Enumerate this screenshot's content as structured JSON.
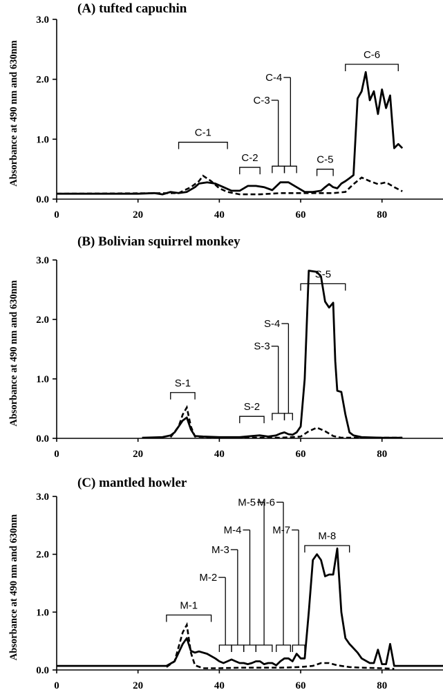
{
  "chart_data": [
    {
      "type": "line",
      "title": "(A) tufted capuchin",
      "ylabel": "Absorbance at 490 nm and 630nm",
      "xlim": [
        0,
        95
      ],
      "ylim": [
        0,
        3
      ],
      "x_ticks": [
        "0",
        "20",
        "40",
        "60",
        "80"
      ],
      "y_ticks": [
        "0.0",
        "1.0",
        "2.0",
        "3.0"
      ],
      "series": [
        {
          "style": "solid",
          "points": [
            [
              0,
              0.09
            ],
            [
              20,
              0.09
            ],
            [
              24,
              0.1
            ],
            [
              26,
              0.08
            ],
            [
              28,
              0.12
            ],
            [
              30,
              0.1
            ],
            [
              32,
              0.12
            ],
            [
              34,
              0.2
            ],
            [
              35,
              0.26
            ],
            [
              37,
              0.28
            ],
            [
              39,
              0.26
            ],
            [
              41,
              0.2
            ],
            [
              43,
              0.14
            ],
            [
              45,
              0.14
            ],
            [
              47,
              0.22
            ],
            [
              49,
              0.22
            ],
            [
              51,
              0.2
            ],
            [
              53,
              0.15
            ],
            [
              55,
              0.28
            ],
            [
              57,
              0.28
            ],
            [
              59,
              0.2
            ],
            [
              61,
              0.12
            ],
            [
              63,
              0.12
            ],
            [
              65,
              0.14
            ],
            [
              66,
              0.2
            ],
            [
              67,
              0.25
            ],
            [
              68,
              0.2
            ],
            [
              69,
              0.18
            ],
            [
              70,
              0.26
            ],
            [
              71,
              0.3
            ],
            [
              72,
              0.35
            ],
            [
              73,
              0.4
            ],
            [
              74,
              1.68
            ],
            [
              75,
              1.8
            ],
            [
              76,
              2.12
            ],
            [
              77,
              1.65
            ],
            [
              78,
              1.8
            ],
            [
              79,
              1.42
            ],
            [
              80,
              1.83
            ],
            [
              81,
              1.52
            ],
            [
              82,
              1.73
            ],
            [
              83,
              0.85
            ],
            [
              84,
              0.92
            ],
            [
              85,
              0.85
            ]
          ]
        },
        {
          "style": "dashed",
          "points": [
            [
              0,
              0.09
            ],
            [
              30,
              0.1
            ],
            [
              33,
              0.2
            ],
            [
              35,
              0.3
            ],
            [
              36,
              0.39
            ],
            [
              38,
              0.3
            ],
            [
              40,
              0.18
            ],
            [
              42,
              0.12
            ],
            [
              45,
              0.08
            ],
            [
              50,
              0.08
            ],
            [
              55,
              0.1
            ],
            [
              60,
              0.1
            ],
            [
              65,
              0.1
            ],
            [
              68,
              0.1
            ],
            [
              71,
              0.12
            ],
            [
              73,
              0.25
            ],
            [
              75,
              0.36
            ],
            [
              77,
              0.3
            ],
            [
              79,
              0.25
            ],
            [
              81,
              0.28
            ],
            [
              83,
              0.2
            ],
            [
              85,
              0.13
            ]
          ]
        }
      ],
      "annotations": [
        {
          "label": "C-1",
          "from": 30,
          "to": 42,
          "level": 0.95
        },
        {
          "label": "C-2",
          "from": 45,
          "to": 50,
          "level": 0.53
        },
        {
          "label": "C-3",
          "from": 53,
          "to": 56,
          "level": 0.55,
          "leader_to": 1.65
        },
        {
          "label": "C-4",
          "from": 56,
          "to": 59,
          "level": 0.55,
          "leader_to": 2.03
        },
        {
          "label": "C-5",
          "from": 64,
          "to": 68,
          "level": 0.5
        },
        {
          "label": "C-6",
          "from": 71,
          "to": 84,
          "level": 2.25
        }
      ]
    },
    {
      "type": "line",
      "title": "(B) Bolivian squirrel monkey",
      "ylabel": "Absorbance at 490 nm and 630nm",
      "xlim": [
        0,
        95
      ],
      "ylim": [
        0,
        3
      ],
      "x_ticks": [
        "0",
        "20",
        "40",
        "60",
        "80"
      ],
      "y_ticks": [
        "0.0",
        "1.0",
        "2.0",
        "3.0"
      ],
      "series": [
        {
          "style": "solid",
          "points": [
            [
              21,
              0.01
            ],
            [
              26,
              0.02
            ],
            [
              28,
              0.05
            ],
            [
              29,
              0.1
            ],
            [
              30,
              0.2
            ],
            [
              31,
              0.3
            ],
            [
              32,
              0.35
            ],
            [
              33,
              0.15
            ],
            [
              34,
              0.04
            ],
            [
              36,
              0.03
            ],
            [
              40,
              0.02
            ],
            [
              45,
              0.02
            ],
            [
              48,
              0.04
            ],
            [
              50,
              0.05
            ],
            [
              52,
              0.03
            ],
            [
              54,
              0.05
            ],
            [
              55,
              0.08
            ],
            [
              56,
              0.1
            ],
            [
              57,
              0.07
            ],
            [
              58,
              0.06
            ],
            [
              59,
              0.1
            ],
            [
              60,
              0.2
            ],
            [
              61,
              1.0
            ],
            [
              62,
              2.82
            ],
            [
              64,
              2.8
            ],
            [
              65,
              2.72
            ],
            [
              66,
              2.3
            ],
            [
              67,
              2.2
            ],
            [
              68,
              2.28
            ],
            [
              68.5,
              1.3
            ],
            [
              69,
              0.8
            ],
            [
              70,
              0.78
            ],
            [
              71,
              0.4
            ],
            [
              72,
              0.1
            ],
            [
              73,
              0.05
            ],
            [
              75,
              0.02
            ],
            [
              80,
              0.01
            ],
            [
              85,
              0.01
            ]
          ]
        },
        {
          "style": "dashed",
          "points": [
            [
              28,
              0.02
            ],
            [
              30,
              0.2
            ],
            [
              31,
              0.4
            ],
            [
              32,
              0.52
            ],
            [
              33,
              0.2
            ],
            [
              34,
              0.03
            ],
            [
              40,
              0.01
            ],
            [
              55,
              0.01
            ],
            [
              60,
              0.03
            ],
            [
              62,
              0.12
            ],
            [
              64,
              0.18
            ],
            [
              66,
              0.12
            ],
            [
              68,
              0.04
            ],
            [
              70,
              0.01
            ],
            [
              85,
              0.01
            ]
          ]
        }
      ],
      "annotations": [
        {
          "label": "S-1",
          "from": 28,
          "to": 34,
          "level": 0.77
        },
        {
          "label": "S-2",
          "from": 45,
          "to": 51,
          "level": 0.37
        },
        {
          "label": "S-3",
          "from": 53,
          "to": 56,
          "level": 0.42,
          "leader_to": 1.55
        },
        {
          "label": "S-4",
          "from": 56,
          "to": 58,
          "level": 0.42,
          "leader_to": 1.93
        },
        {
          "label": "S-5",
          "from": 60,
          "to": 71,
          "level": 2.6
        }
      ]
    },
    {
      "type": "line",
      "title": "(C) mantled howler",
      "ylabel": "Absorbance at 490 nm and 630nm",
      "xlim": [
        0,
        95
      ],
      "ylim": [
        0,
        3
      ],
      "x_ticks": [
        "0",
        "20",
        "40",
        "60",
        "80"
      ],
      "y_ticks": [
        "0.0",
        "1.0",
        "2.0",
        "3.0"
      ],
      "series": [
        {
          "style": "solid",
          "points": [
            [
              0,
              0.07
            ],
            [
              27,
              0.07
            ],
            [
              29,
              0.15
            ],
            [
              30,
              0.3
            ],
            [
              31,
              0.45
            ],
            [
              32,
              0.55
            ],
            [
              33,
              0.33
            ],
            [
              34,
              0.3
            ],
            [
              35,
              0.32
            ],
            [
              37,
              0.28
            ],
            [
              39,
              0.2
            ],
            [
              40,
              0.15
            ],
            [
              41,
              0.12
            ],
            [
              42,
              0.15
            ],
            [
              43,
              0.18
            ],
            [
              44,
              0.15
            ],
            [
              45,
              0.12
            ],
            [
              46,
              0.12
            ],
            [
              47,
              0.1
            ],
            [
              48,
              0.12
            ],
            [
              49,
              0.15
            ],
            [
              50,
              0.15
            ],
            [
              51,
              0.1
            ],
            [
              52,
              0.12
            ],
            [
              53,
              0.12
            ],
            [
              54,
              0.08
            ],
            [
              55,
              0.15
            ],
            [
              56,
              0.2
            ],
            [
              57,
              0.2
            ],
            [
              58,
              0.15
            ],
            [
              59,
              0.28
            ],
            [
              60,
              0.2
            ],
            [
              61,
              0.2
            ],
            [
              62,
              1.0
            ],
            [
              63,
              1.9
            ],
            [
              64,
              2.0
            ],
            [
              65,
              1.9
            ],
            [
              66,
              1.62
            ],
            [
              67,
              1.65
            ],
            [
              68,
              1.65
            ],
            [
              69,
              2.1
            ],
            [
              70,
              1.0
            ],
            [
              71,
              0.55
            ],
            [
              72,
              0.45
            ],
            [
              74,
              0.3
            ],
            [
              75,
              0.2
            ],
            [
              77,
              0.12
            ],
            [
              78,
              0.12
            ],
            [
              79,
              0.35
            ],
            [
              80,
              0.1
            ],
            [
              81,
              0.1
            ],
            [
              82,
              0.45
            ],
            [
              83,
              0.07
            ],
            [
              85,
              0.07
            ],
            [
              95,
              0.07
            ]
          ]
        },
        {
          "style": "dashed",
          "points": [
            [
              27,
              0.05
            ],
            [
              29,
              0.15
            ],
            [
              30,
              0.4
            ],
            [
              31,
              0.65
            ],
            [
              32,
              0.78
            ],
            [
              33,
              0.3
            ],
            [
              34,
              0.08
            ],
            [
              36,
              0.03
            ],
            [
              40,
              0.03
            ],
            [
              45,
              0.04
            ],
            [
              50,
              0.04
            ],
            [
              55,
              0.04
            ],
            [
              60,
              0.05
            ],
            [
              63,
              0.07
            ],
            [
              65,
              0.12
            ],
            [
              67,
              0.12
            ],
            [
              69,
              0.08
            ],
            [
              72,
              0.05
            ],
            [
              75,
              0.04
            ],
            [
              80,
              0.03
            ],
            [
              83,
              0.02
            ]
          ]
        }
      ],
      "annotations": [
        {
          "label": "M-1",
          "from": 27,
          "to": 38,
          "level": 0.95
        },
        {
          "label": "M-2",
          "from": 40,
          "to": 43,
          "level": 0.43,
          "leader_to": 1.6
        },
        {
          "label": "M-3",
          "from": 43,
          "to": 46,
          "level": 0.43,
          "leader_to": 2.08
        },
        {
          "label": "M-4",
          "from": 46,
          "to": 49,
          "level": 0.43,
          "leader_to": 2.42
        },
        {
          "label": "M-5",
          "from": 49,
          "to": 53,
          "level": 0.43,
          "leader_to": 2.9
        },
        {
          "label": "M-6",
          "from": 54,
          "to": 57.5,
          "level": 0.43,
          "leader_to": 2.9
        },
        {
          "label": "M-7",
          "from": 58,
          "to": 61,
          "level": 0.43,
          "leader_to": 2.42
        },
        {
          "label": "M-8",
          "from": 61,
          "to": 72,
          "level": 2.15
        }
      ]
    }
  ]
}
